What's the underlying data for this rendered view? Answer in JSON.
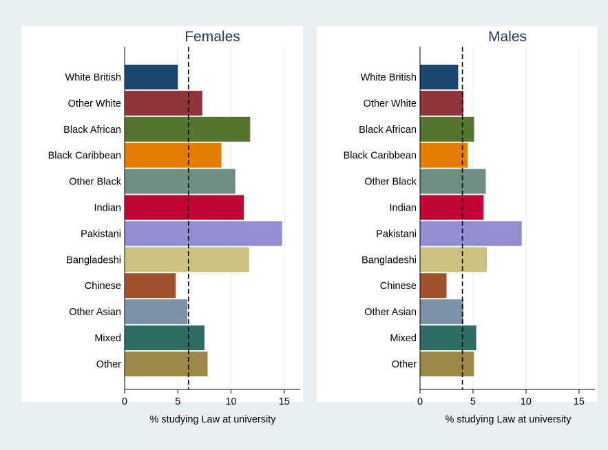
{
  "chart_data": [
    {
      "type": "bar",
      "orientation": "horizontal",
      "title": "Females",
      "xlabel": "% studying Law at university",
      "ylabel": "",
      "xlim": [
        0,
        16.5
      ],
      "xticks": [
        0,
        5,
        10,
        15
      ],
      "reference_line": 6,
      "grid": true,
      "categories": [
        "White British",
        "Other White",
        "Black African",
        "Black Caribbean",
        "Other Black",
        "Indian",
        "Pakistani",
        "Bangladeshi",
        "Chinese",
        "Other Asian",
        "Mixed",
        "Other"
      ],
      "values": [
        5.0,
        7.3,
        11.8,
        9.1,
        10.4,
        11.2,
        14.8,
        11.7,
        4.8,
        5.9,
        7.5,
        7.8
      ],
      "colors": [
        "#1a476f",
        "#90353b",
        "#55752f",
        "#e37e00",
        "#6e8e84",
        "#c10534",
        "#938dd2",
        "#cac27e",
        "#a0522d",
        "#7b92a8",
        "#2d6d66",
        "#9c8847"
      ]
    },
    {
      "type": "bar",
      "orientation": "horizontal",
      "title": "Males",
      "xlabel": "% studying Law at university",
      "ylabel": "",
      "xlim": [
        0,
        16.5
      ],
      "xticks": [
        0,
        5,
        10,
        15
      ],
      "reference_line": 4,
      "grid": true,
      "categories": [
        "White British",
        "Other White",
        "Black African",
        "Black Caribbean",
        "Other Black",
        "Indian",
        "Pakistani",
        "Bangladeshi",
        "Chinese",
        "Other Asian",
        "Mixed",
        "Other"
      ],
      "values": [
        3.6,
        4.1,
        5.1,
        4.5,
        6.2,
        6.0,
        9.6,
        6.3,
        2.5,
        4.1,
        5.3,
        5.1
      ],
      "colors": [
        "#1a476f",
        "#90353b",
        "#55752f",
        "#e37e00",
        "#6e8e84",
        "#c10534",
        "#938dd2",
        "#cac27e",
        "#a0522d",
        "#7b92a8",
        "#2d6d66",
        "#9c8847"
      ]
    }
  ]
}
